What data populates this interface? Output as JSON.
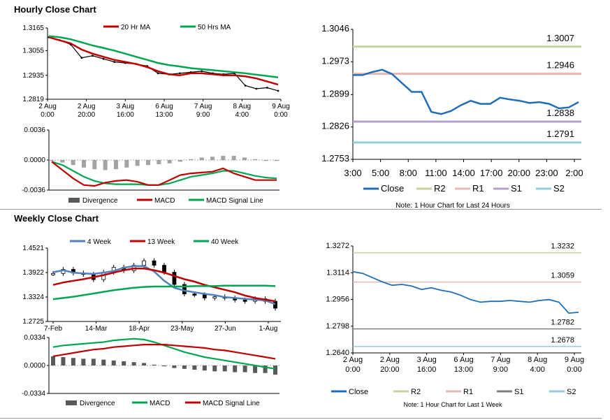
{
  "hourly_title": "Hourly Close Chart",
  "weekly_title": "Weekly Close Chart",
  "chart_data": [
    {
      "type": "line",
      "id": "hourly_price",
      "ylim": [
        1.2819,
        1.3165
      ],
      "yticks": [
        "1.3165",
        "1.3055",
        "1.2935",
        "1.2819"
      ],
      "ytick_values": [
        1.3165,
        1.3055,
        1.2935,
        1.2819
      ],
      "x_labels": [
        [
          "2 Aug",
          "0:00"
        ],
        [
          "2 Aug",
          "20:00"
        ],
        [
          "3 Aug",
          "16:00"
        ],
        [
          "6 Aug",
          "13:00"
        ],
        [
          "7 Aug",
          "9:00"
        ],
        [
          "8 Aug",
          "4:00"
        ],
        [
          "9 Aug",
          "0:00"
        ]
      ],
      "series": [
        {
          "name": "20 Hr MA",
          "color": "#c00000",
          "values": [
            1.312,
            1.3105,
            1.309,
            1.306,
            1.304,
            1.3025,
            1.301,
            1.3,
            1.299,
            1.2975,
            1.2955,
            1.294,
            1.2935,
            1.2945,
            1.2945,
            1.294,
            1.2935,
            1.2935,
            1.293,
            1.292,
            1.2905,
            1.289
          ]
        },
        {
          "name": "50 Hrs MA",
          "color": "#00a651",
          "values": [
            1.3125,
            1.312,
            1.311,
            1.3095,
            1.308,
            1.3068,
            1.3055,
            1.304,
            1.3025,
            1.301,
            1.2995,
            1.2985,
            1.2978,
            1.297,
            1.2965,
            1.296,
            1.2955,
            1.295,
            1.2945,
            1.2938,
            1.2932,
            1.2925
          ]
        }
      ],
      "price": [
        1.312,
        1.3105,
        1.3085,
        1.302,
        1.303,
        1.3015,
        1.3,
        1.2995,
        1.299,
        1.298,
        1.2945,
        1.294,
        1.2945,
        1.295,
        1.2955,
        1.2945,
        1.294,
        1.2945,
        1.2885,
        1.287,
        1.2875,
        1.286
      ]
    },
    {
      "type": "bar",
      "id": "hourly_macd",
      "ylim": [
        -0.0036,
        0.0036
      ],
      "yticks": [
        "0.0036",
        "0.0000",
        "-0.0036"
      ],
      "ytick_values": [
        0.0036,
        0.0,
        -0.0036
      ],
      "series": [
        {
          "name": "Divergence",
          "color": "#595959",
          "values": [
            -0.0001,
            -0.0003,
            -0.0006,
            -0.0009,
            -0.0011,
            -0.0012,
            -0.0011,
            -0.0009,
            -0.0007,
            -0.0006,
            -0.0005,
            -0.0004,
            -0.0002,
            0.0001,
            0.0003,
            0.0004,
            0.0005,
            0.0005,
            0.0003,
            0.0001,
            -0.0001,
            -0.0001
          ]
        },
        {
          "name": "MACD",
          "color": "#c00000",
          "values": [
            -0.0002,
            -0.0012,
            -0.0022,
            -0.003,
            -0.0031,
            -0.0027,
            -0.0025,
            -0.0024,
            -0.0026,
            -0.003,
            -0.003,
            -0.0024,
            -0.0018,
            -0.0016,
            -0.0015,
            -0.0014,
            -0.001,
            -0.0016,
            -0.002,
            -0.0024,
            -0.0024,
            -0.0024
          ]
        },
        {
          "name": "MACD Signal Line",
          "color": "#00a651",
          "values": [
            -0.0002,
            -0.0006,
            -0.0013,
            -0.002,
            -0.0025,
            -0.0028,
            -0.0029,
            -0.0029,
            -0.0029,
            -0.003,
            -0.003,
            -0.0028,
            -0.0024,
            -0.002,
            -0.0018,
            -0.0016,
            -0.0013,
            -0.0013,
            -0.0016,
            -0.0019,
            -0.0021,
            -0.0022
          ]
        }
      ]
    },
    {
      "type": "line",
      "id": "hourly_24h",
      "ylim": [
        1.2753,
        1.3046
      ],
      "yticks": [
        "1.3046",
        "1.2973",
        "1.2899",
        "1.2826",
        "1.2753"
      ],
      "ytick_values": [
        1.3046,
        1.2973,
        1.2899,
        1.2826,
        1.2753
      ],
      "x_labels": [
        "3:00",
        "5:00",
        "8:00",
        "11:00",
        "14:00",
        "17:00",
        "20:00",
        "23:00",
        "2:00"
      ],
      "levels": [
        {
          "name": "R2",
          "value": 1.3007,
          "label": "1.3007",
          "color": "#c3d69b"
        },
        {
          "name": "R1",
          "value": 1.2946,
          "label": "1.2946",
          "color": "#e6b9b8"
        },
        {
          "name": "S1",
          "value": 1.2838,
          "label": "1.2838",
          "color": "#b3a2c7"
        },
        {
          "name": "S2",
          "value": 1.2791,
          "label": "1.2791",
          "color": "#93cddd"
        }
      ],
      "series": [
        {
          "name": "Close",
          "color": "#1f6eb6",
          "values": [
            1.2943,
            1.2943,
            1.295,
            1.2955,
            1.2945,
            1.2925,
            1.2905,
            1.2905,
            1.286,
            1.2855,
            1.2862,
            1.2875,
            1.2885,
            1.2878,
            1.2878,
            1.2892,
            1.2888,
            1.2885,
            1.288,
            1.2882,
            1.2878,
            1.2868,
            1.287,
            1.2882
          ]
        }
      ],
      "legend": [
        "Close",
        "R2",
        "R1",
        "S1",
        "S2"
      ],
      "note": "Note: 1 Hour Chart for Last 24 Hours"
    },
    {
      "type": "line",
      "id": "weekly_price",
      "ylim": [
        1.2725,
        1.4521
      ],
      "yticks": [
        "1.4521",
        "1.3922",
        "1.3324",
        "1.2725"
      ],
      "ytick_values": [
        1.4521,
        1.3922,
        1.3324,
        1.2725
      ],
      "x_labels": [
        "7-Feb",
        "14-Mar",
        "18-Apr",
        "23-May",
        "27-Jun",
        "1-Aug"
      ],
      "series": [
        {
          "name": "4 Week",
          "color": "#4f81bd",
          "values": [
            1.393,
            1.398,
            1.392,
            1.39,
            1.389,
            1.392,
            1.396,
            1.404,
            1.408,
            1.408,
            1.395,
            1.372,
            1.355,
            1.348,
            1.344,
            1.34,
            1.337,
            1.332,
            1.33,
            1.328,
            1.326,
            1.324,
            1.315
          ]
        },
        {
          "name": "13 Week",
          "color": "#c00000",
          "values": [
            1.362,
            1.368,
            1.372,
            1.376,
            1.381,
            1.386,
            1.392,
            1.398,
            1.402,
            1.402,
            1.398,
            1.392,
            1.384,
            1.376,
            1.37,
            1.362,
            1.356,
            1.35,
            1.344,
            1.336,
            1.33,
            1.326,
            1.322
          ]
        },
        {
          "name": "40 Week",
          "color": "#00a651",
          "values": [
            1.327,
            1.33,
            1.333,
            1.337,
            1.341,
            1.345,
            1.349,
            1.352,
            1.355,
            1.357,
            1.358,
            1.358,
            1.358,
            1.358,
            1.359,
            1.359,
            1.359,
            1.36,
            1.36,
            1.36,
            1.36,
            1.36,
            1.359
          ]
        }
      ],
      "price": [
        1.39,
        1.4,
        1.391,
        1.388,
        1.375,
        1.393,
        1.405,
        1.397,
        1.41,
        1.421,
        1.41,
        1.393,
        1.363,
        1.34,
        1.338,
        1.33,
        1.333,
        1.33,
        1.325,
        1.322,
        1.328,
        1.322,
        1.305
      ]
    },
    {
      "type": "bar",
      "id": "weekly_macd",
      "ylim": [
        -0.0334,
        0.0334
      ],
      "yticks": [
        "0.0334",
        "0.0000",
        "-0.0334"
      ],
      "ytick_values": [
        0.0334,
        0.0,
        -0.0334
      ],
      "series": [
        {
          "name": "Divergence",
          "color": "#595959",
          "values": [
            0.011,
            0.01,
            0.009,
            0.008,
            0.008,
            0.007,
            0.006,
            0.005,
            0.004,
            0.003,
            0.001,
            -0.001,
            -0.003,
            -0.004,
            -0.005,
            -0.006,
            -0.007,
            -0.007,
            -0.008,
            -0.008,
            -0.009,
            -0.009,
            -0.011
          ]
        },
        {
          "name": "MACD",
          "color": "#00a651",
          "values": [
            0.022,
            0.024,
            0.025,
            0.026,
            0.027,
            0.028,
            0.03,
            0.031,
            0.032,
            0.031,
            0.028,
            0.024,
            0.02,
            0.016,
            0.013,
            0.01,
            0.008,
            0.006,
            0.004,
            0.002,
            0.0,
            -0.002,
            -0.004
          ]
        },
        {
          "name": "MACD Signal Line",
          "color": "#c00000",
          "values": [
            0.011,
            0.013,
            0.015,
            0.017,
            0.019,
            0.02,
            0.022,
            0.023,
            0.024,
            0.025,
            0.025,
            0.025,
            0.024,
            0.023,
            0.022,
            0.021,
            0.019,
            0.018,
            0.016,
            0.014,
            0.012,
            0.01,
            0.008
          ]
        }
      ]
    },
    {
      "type": "line",
      "id": "weekly_1w",
      "ylim": [
        1.264,
        1.3272
      ],
      "yticks": [
        "1.3272",
        "1.3114",
        "1.2956",
        "1.2798",
        "1.2640"
      ],
      "ytick_values": [
        1.3272,
        1.3114,
        1.2956,
        1.2798,
        1.264
      ],
      "x_labels": [
        [
          "2 Aug",
          "0:00"
        ],
        [
          "2 Aug",
          "20:00"
        ],
        [
          "3 Aug",
          "16:00"
        ],
        [
          "6 Aug",
          "13:00"
        ],
        [
          "7 Aug",
          "9:00"
        ],
        [
          "8 Aug",
          "4:00"
        ],
        [
          "9 Aug",
          "0:00"
        ]
      ],
      "levels": [
        {
          "name": "R2",
          "value": 1.3232,
          "label": "1.3232",
          "color": "#c3d69b"
        },
        {
          "name": "R1",
          "value": 1.3059,
          "label": "1.3059",
          "color": "#e6b9b8"
        },
        {
          "name": "S1",
          "value": 1.2782,
          "label": "1.2782",
          "color": "#7f7f7f"
        },
        {
          "name": "S2",
          "value": 1.2678,
          "label": "1.2678",
          "color": "#93cddd"
        }
      ],
      "series": [
        {
          "name": "Close",
          "color": "#1f6eb6",
          "values": [
            1.312,
            1.311,
            1.3085,
            1.306,
            1.304,
            1.3045,
            1.3035,
            1.3015,
            1.3025,
            1.301,
            1.3,
            1.298,
            1.2955,
            1.294,
            1.2945,
            1.2945,
            1.295,
            1.2945,
            1.294,
            1.295,
            1.2955,
            1.294,
            1.2875,
            1.288
          ]
        }
      ],
      "legend": [
        "Close",
        "R2",
        "R1",
        "S1",
        "S2"
      ],
      "note": "Note: 1 Hour Chart for Last 1 Week"
    }
  ]
}
